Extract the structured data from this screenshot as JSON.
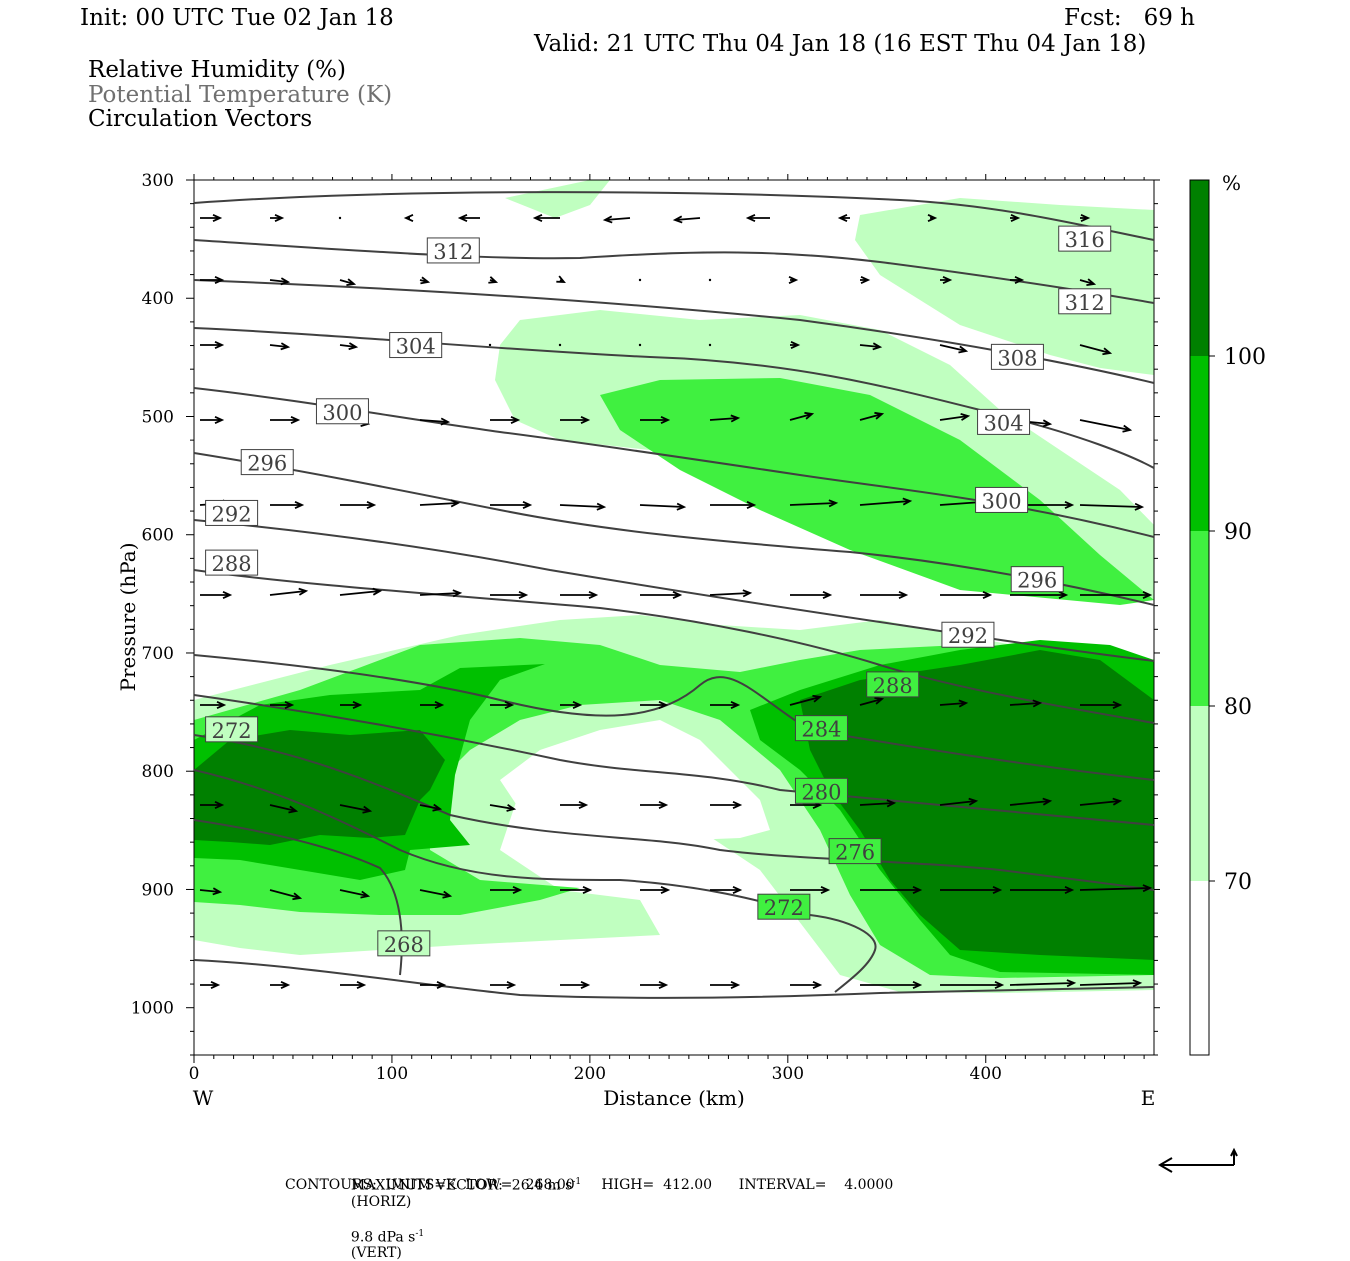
{
  "header": {
    "init": "Init: 00 UTC Tue 02 Jan 18",
    "fcst": "Fcst:   69 h",
    "valid": "Valid: 21 UTC Thu 04 Jan 18 (16 EST Thu 04 Jan 18)",
    "fields": [
      "Relative Humidity (%)",
      "Potential Temperature (K)",
      "Circulation Vectors"
    ]
  },
  "chart_data": {
    "type": "contour",
    "xlabel": "Distance (km)",
    "ylabel": "Pressure (hPa)",
    "x_ticks": [
      0,
      100,
      200,
      300,
      400
    ],
    "y_ticks": [
      300,
      400,
      500,
      600,
      700,
      800,
      900,
      1000
    ],
    "xlim": [
      0,
      485
    ],
    "ylim": [
      300,
      1040
    ],
    "y_inverted": true,
    "west_label": "W",
    "east_label": "E",
    "rh_colorbar": {
      "unit": "%",
      "levels": [
        70,
        80,
        90,
        100
      ],
      "colors": [
        "#ffffff",
        "#c0ffc0",
        "#40f040",
        "#00c000",
        "#008000"
      ]
    },
    "theta_labels": [
      {
        "value": "316",
        "x": 450,
        "p": 350
      },
      {
        "value": "312",
        "x": 131,
        "p": 360
      },
      {
        "value": "312",
        "x": 450,
        "p": 403
      },
      {
        "value": "308",
        "x": 416,
        "p": 450
      },
      {
        "value": "304",
        "x": 112,
        "p": 440
      },
      {
        "value": "304",
        "x": 409,
        "p": 505
      },
      {
        "value": "300",
        "x": 75,
        "p": 496
      },
      {
        "value": "300",
        "x": 408,
        "p": 571
      },
      {
        "value": "296",
        "x": 37,
        "p": 539
      },
      {
        "value": "296",
        "x": 426,
        "p": 638
      },
      {
        "value": "292",
        "x": 19,
        "p": 582
      },
      {
        "value": "292",
        "x": 391,
        "p": 685
      },
      {
        "value": "288",
        "x": 19,
        "p": 624
      },
      {
        "value": "288",
        "x": 353,
        "p": 727
      },
      {
        "value": "284",
        "x": 317,
        "p": 764
      },
      {
        "value": "280",
        "x": 317,
        "p": 817
      },
      {
        "value": "276",
        "x": 334,
        "p": 868
      },
      {
        "value": "272",
        "x": 19,
        "p": 765
      },
      {
        "value": "272",
        "x": 298,
        "p": 915
      },
      {
        "value": "268",
        "x": 106,
        "p": 946
      }
    ],
    "footer": {
      "max_vector": "MAXIMUM VECTOR:  26.4 m s",
      "horiz": "(HORIZ)",
      "vert_val": "9.8 dPa s",
      "vert": "(VERT)",
      "exp": "-1",
      "contours": "CONTOURS:  UNITS=K  LOW=   268.00      HIGH=  412.00      INTERVAL=    4.0000"
    }
  }
}
